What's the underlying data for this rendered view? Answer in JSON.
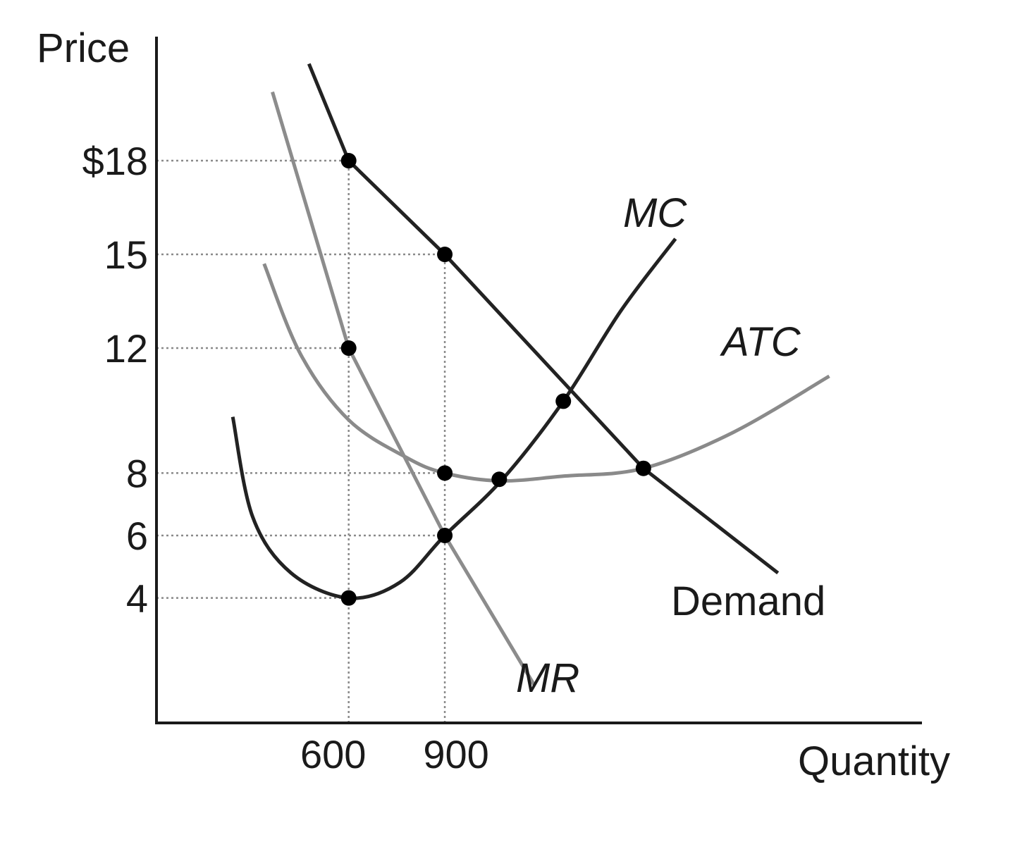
{
  "chart_data": {
    "type": "line",
    "title": "",
    "xlabel": "Quantity",
    "ylabel": "Price",
    "x_ticks": [
      {
        "value": 600,
        "label": "600"
      },
      {
        "value": 900,
        "label": "900"
      }
    ],
    "y_ticks": [
      {
        "value": 18,
        "label": "$18"
      },
      {
        "value": 15,
        "label": "15"
      },
      {
        "value": 12,
        "label": "12"
      },
      {
        "value": 8,
        "label": "8"
      },
      {
        "value": 6,
        "label": "6"
      },
      {
        "value": 4,
        "label": "4"
      }
    ],
    "xlim": [
      0,
      2400
    ],
    "ylim": [
      0,
      21.6
    ],
    "grid": false,
    "legend": "none",
    "series": [
      {
        "name": "Demand",
        "label": "Demand",
        "italic": false,
        "color": "#222222",
        "points": [
          [
            476,
            21.1
          ],
          [
            600,
            18
          ],
          [
            900,
            15
          ],
          [
            1520,
            8.15
          ],
          [
            1940,
            4.8
          ]
        ]
      },
      {
        "name": "MR",
        "label": "MR",
        "italic": true,
        "color": "#8c8c8c",
        "points": [
          [
            362,
            20.2
          ],
          [
            600,
            12
          ],
          [
            900,
            6
          ],
          [
            1180,
            1.2
          ]
        ]
      },
      {
        "name": "MC",
        "label": "MC",
        "italic": true,
        "color": "#222222",
        "points": [
          [
            238,
            9.8
          ],
          [
            300,
            6.6
          ],
          [
            420,
            4.8
          ],
          [
            600,
            4
          ],
          [
            760,
            4.5
          ],
          [
            900,
            6
          ],
          [
            1080,
            7.8
          ],
          [
            1270,
            10.3
          ],
          [
            1450,
            13.2
          ],
          [
            1620,
            15.5
          ]
        ]
      },
      {
        "name": "ATC",
        "label": "ATC",
        "italic": true,
        "color": "#8a8a8a",
        "points": [
          [
            336,
            14.7
          ],
          [
            450,
            11.8
          ],
          [
            600,
            9.7
          ],
          [
            780,
            8.5
          ],
          [
            900,
            8
          ],
          [
            1070,
            7.75
          ],
          [
            1270,
            7.9
          ],
          [
            1520,
            8.15
          ],
          [
            1800,
            9.3
          ],
          [
            2100,
            11.1
          ]
        ]
      }
    ],
    "guides": [
      {
        "y": 18,
        "x_end": 600
      },
      {
        "y": 15,
        "x_end": 900
      },
      {
        "y": 12,
        "x_end": 600
      },
      {
        "y": 8,
        "x_end": 900
      },
      {
        "y": 6,
        "x_end": 900
      },
      {
        "y": 4,
        "x_end": 600
      },
      {
        "x": 600,
        "y_end": 18
      },
      {
        "x": 900,
        "y_end": 15
      }
    ],
    "dots": [
      {
        "x": 600,
        "y": 18
      },
      {
        "x": 900,
        "y": 15
      },
      {
        "x": 600,
        "y": 12
      },
      {
        "x": 1270,
        "y": 10.3
      },
      {
        "x": 900,
        "y": 8
      },
      {
        "x": 1070,
        "y": 7.8
      },
      {
        "x": 1520,
        "y": 8.15
      },
      {
        "x": 900,
        "y": 6
      },
      {
        "x": 600,
        "y": 4
      }
    ]
  }
}
